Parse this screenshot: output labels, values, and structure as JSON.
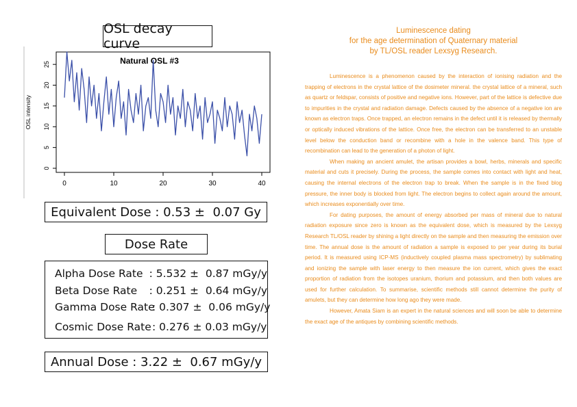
{
  "osl_title": "OSL decay curve",
  "chart_data": {
    "type": "line",
    "title": "Natural OSL #3",
    "ylabel": "OSL intensity",
    "xlabel": "",
    "xlim": [
      0,
      40
    ],
    "ylim": [
      0,
      27
    ],
    "x_ticks": [
      "0",
      "10",
      "20",
      "30",
      "40"
    ],
    "y_ticks": [
      "0",
      "5",
      "10",
      "15",
      "20",
      "25"
    ],
    "series": [
      {
        "color": "#3a4fa8",
        "x": [
          0,
          0.5,
          1,
          1.5,
          2,
          2.5,
          3,
          3.5,
          4,
          4.5,
          5,
          5.5,
          6,
          6.5,
          7,
          7.5,
          8,
          8.5,
          9,
          9.5,
          10,
          10.5,
          11,
          11.5,
          12,
          12.5,
          13,
          13.5,
          14,
          14.5,
          15,
          15.5,
          16,
          16.5,
          17,
          17.5,
          18,
          18.5,
          19,
          19.5,
          20,
          20.5,
          21,
          21.5,
          22,
          22.5,
          23,
          23.5,
          24,
          24.5,
          25,
          25.5,
          26,
          26.5,
          27,
          27.5,
          28,
          28.5,
          29,
          29.5,
          30,
          30.5,
          31,
          31.5,
          32,
          32.5,
          33,
          33.5,
          34,
          34.5,
          35,
          35.5,
          36,
          36.5,
          37,
          37.5,
          38,
          38.5,
          39,
          39.5,
          40
        ],
        "y": [
          17,
          28,
          21,
          26,
          16,
          23,
          14,
          24,
          19,
          11,
          22,
          15,
          20,
          12,
          18,
          9,
          16,
          22,
          13,
          19,
          10,
          17,
          21,
          12,
          16,
          8,
          19,
          14,
          11,
          18,
          13,
          20,
          9,
          15,
          17,
          12,
          26,
          14,
          10,
          18,
          16,
          11,
          20,
          13,
          17,
          8,
          15,
          12,
          19,
          10,
          16,
          14,
          9,
          18,
          12,
          15,
          7,
          17,
          11,
          13,
          16,
          6,
          14,
          12,
          9,
          17,
          10,
          15,
          13,
          7,
          16,
          11,
          14,
          8,
          3,
          13,
          9,
          15,
          12,
          6,
          13
        ]
      }
    ]
  },
  "equivalent_dose": "Equivalent Dose : 0.53 ±  0.07 Gy",
  "dose_rate_title": "Dose Rate",
  "dose_rates": [
    {
      "label": "Alpha Dose Rate",
      "value": ": 5.532 ±  0.87 mGy/y"
    },
    {
      "label": "Beta Dose Rate",
      "value": ": 0.251 ±  0.64 mGy/y"
    },
    {
      "label": "Gamma Dose Rate",
      "value": ": 0.307 ±  0.06 mGy/y"
    },
    {
      "label": "Cosmic Dose Rate",
      "value": ": 0.276 ± 0.03 mGy/y"
    }
  ],
  "annual_dose": "Annual Dose : 3.22 ±  0.67 mGy/y",
  "article": {
    "title_lines": [
      "Luminescence dating",
      "for the age determination of Quaternary material",
      "by TL/OSL reader Lexsyg Research."
    ],
    "paragraphs": [
      "Luminescence is a phenomenon caused by the interaction of ionising radiation and the trapping of electrons in the crystal lattice of the dosimeter mineral. the crystal lattice of a mineral, such as quartz or feldspar, consists of positive and negative ions. However, part of the lattice is defective due to impurities in the crystal and radiation damage. Defects caused by the absence of a negative ion are known as electron traps. Once trapped, an electron remains in the defect until it is released by thermally or optically induced vibrations of the lattice. Once free, the electron can be transferred to an unstable level below the conduction band or recombine with a hole in the valence band. This type of recombination can lead to the generation of a photon of light.",
      "When making an ancient amulet, the artisan provides a bowl, herbs, minerals and specific material and cuts it precisely. During the process, the sample comes into contact with light and heat, causing the internal electrons of the electron trap to break. When the sample is in the fixed blog pressure, the inner body is blocked from light. The electron begins to collect again around the amount, which increases exponentially over time.",
      "For dating purposes, the amount of energy absorbed per mass of mineral due to natural radiation exposure since zero is known as the equivalent dose, which is measured by the Lexsyg Research TL/OSL reader by shining a light directly on the sample and then measuring the emission over time. The annual dose is the amount of radiation a sample is exposed to per year during its burial period. It is measured using ICP-MS (inductively coupled plasma mass spectrometry) by sublimating and ionizing the sample with laser energy to then measure the ion current, which gives the exact proportion of radiation from the isotopes uranium, thorium and potassium, and then both values are used for further calculation. To summarise, scientific methods still cannot determine the purity of amulets, but they can determine how long ago they were made.",
      "However, Amata Siam is an expert in the natural sciences and will soon be able to determine the exact age of the antiques by combining scientific methods."
    ]
  }
}
